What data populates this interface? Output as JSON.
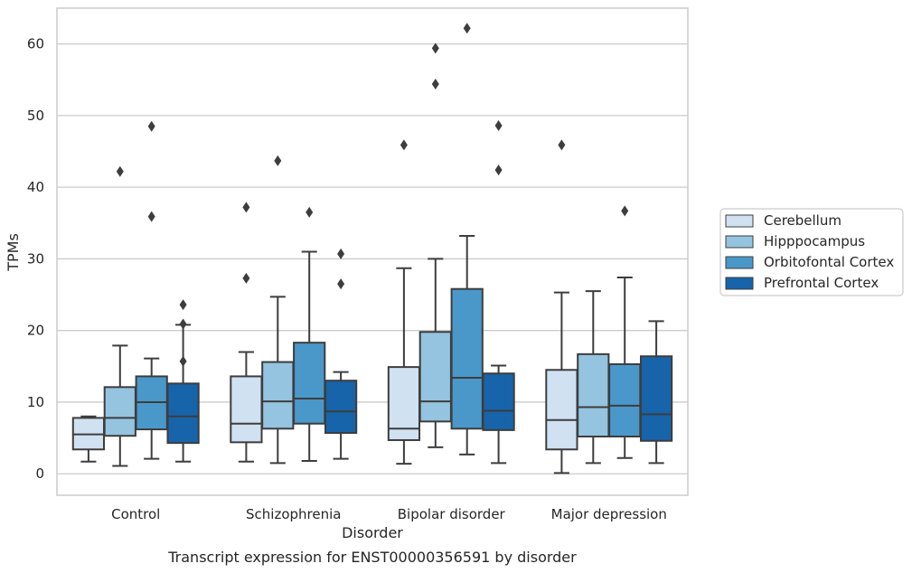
{
  "chart_data": {
    "type": "box",
    "caption": "Transcript expression for ENST00000356591 by disorder",
    "xlabel": "Disorder",
    "ylabel": "TPMs",
    "ylim": [
      -3,
      65
    ],
    "yticks": [
      0,
      10,
      20,
      30,
      40,
      50,
      60
    ],
    "grid": "horizontal",
    "legend_position": "right",
    "categories": [
      "Control",
      "Schizophrenia",
      "Bipolar disorder",
      "Major depression"
    ],
    "series": [
      {
        "name": "Cerebellum",
        "color": "#d0e1f2",
        "boxes": [
          {
            "whislo": 1.7,
            "q1": 3.4,
            "med": 5.5,
            "q3": 7.8,
            "whishi": 8.0,
            "fliers": []
          },
          {
            "whislo": 1.7,
            "q1": 4.4,
            "med": 7.0,
            "q3": 13.6,
            "whishi": 17.0,
            "fliers": [
              27.3,
              37.2
            ]
          },
          {
            "whislo": 1.4,
            "q1": 4.7,
            "med": 6.3,
            "q3": 14.9,
            "whishi": 28.7,
            "fliers": [
              45.9
            ]
          },
          {
            "whislo": 0.1,
            "q1": 3.4,
            "med": 7.5,
            "q3": 14.5,
            "whishi": 25.3,
            "fliers": [
              45.9
            ]
          }
        ]
      },
      {
        "name": "Hipppocampus",
        "color": "#94c4df",
        "boxes": [
          {
            "whislo": 1.1,
            "q1": 5.3,
            "med": 7.8,
            "q3": 12.1,
            "whishi": 17.9,
            "fliers": [
              42.2
            ]
          },
          {
            "whislo": 1.5,
            "q1": 6.3,
            "med": 10.1,
            "q3": 15.6,
            "whishi": 24.7,
            "fliers": [
              43.7
            ]
          },
          {
            "whislo": 3.7,
            "q1": 7.3,
            "med": 10.1,
            "q3": 19.8,
            "whishi": 30.0,
            "fliers": [
              54.4,
              59.4
            ]
          },
          {
            "whislo": 1.5,
            "q1": 5.2,
            "med": 9.3,
            "q3": 16.7,
            "whishi": 25.5,
            "fliers": []
          }
        ]
      },
      {
        "name": "Orbitofontal Cortex",
        "color": "#4a98c9",
        "boxes": [
          {
            "whislo": 2.1,
            "q1": 6.2,
            "med": 10.0,
            "q3": 13.6,
            "whishi": 16.1,
            "fliers": [
              35.9,
              48.5
            ]
          },
          {
            "whislo": 1.8,
            "q1": 7.0,
            "med": 10.5,
            "q3": 18.3,
            "whishi": 31.0,
            "fliers": [
              36.5
            ]
          },
          {
            "whislo": 2.7,
            "q1": 6.3,
            "med": 13.4,
            "q3": 25.8,
            "whishi": 33.2,
            "fliers": [
              62.2
            ]
          },
          {
            "whislo": 2.2,
            "q1": 5.2,
            "med": 9.5,
            "q3": 15.3,
            "whishi": 27.4,
            "fliers": [
              36.7
            ]
          }
        ]
      },
      {
        "name": "Prefrontal Cortex",
        "color": "#1764ab",
        "boxes": [
          {
            "whislo": 1.7,
            "q1": 4.3,
            "med": 8.0,
            "q3": 12.6,
            "whishi": 20.8,
            "fliers": [
              15.7,
              20.9,
              23.6
            ]
          },
          {
            "whislo": 2.1,
            "q1": 5.7,
            "med": 8.7,
            "q3": 13.0,
            "whishi": 14.2,
            "fliers": [
              26.5,
              30.7
            ]
          },
          {
            "whislo": 1.5,
            "q1": 6.1,
            "med": 8.8,
            "q3": 14.0,
            "whishi": 15.1,
            "fliers": [
              42.4,
              48.6
            ]
          },
          {
            "whislo": 1.5,
            "q1": 4.6,
            "med": 8.3,
            "q3": 16.4,
            "whishi": 21.3,
            "fliers": []
          }
        ]
      }
    ]
  }
}
